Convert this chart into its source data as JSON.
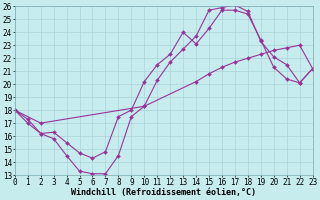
{
  "xlabel": "Windchill (Refroidissement éolien,°C)",
  "bg_color": "#c6ecee",
  "grid_color": "#a8d4d8",
  "line_color": "#993399",
  "line1_x": [
    0,
    1,
    2,
    3,
    4,
    5,
    6,
    7,
    8,
    9,
    10,
    11,
    12,
    13,
    14,
    15,
    16,
    17,
    18,
    19,
    20,
    21,
    22,
    23
  ],
  "line1_y": [
    18.0,
    17.0,
    16.2,
    15.8,
    14.5,
    13.3,
    13.1,
    13.1,
    14.5,
    17.5,
    18.3,
    20.3,
    21.7,
    22.7,
    23.7,
    25.7,
    25.9,
    26.1,
    25.6,
    23.3,
    22.1,
    21.5,
    20.1,
    21.2
  ],
  "line2_x": [
    0,
    1,
    2,
    3,
    4,
    5,
    6,
    7,
    8,
    9,
    10,
    11,
    12,
    13,
    14,
    15,
    16,
    17,
    18,
    19,
    20,
    21,
    22,
    23
  ],
  "line2_y": [
    18.0,
    17.3,
    16.2,
    16.3,
    15.5,
    14.7,
    14.3,
    14.8,
    17.5,
    18.0,
    20.2,
    21.5,
    22.3,
    24.0,
    23.1,
    24.3,
    25.7,
    25.7,
    25.4,
    23.4,
    21.3,
    20.4,
    20.1,
    21.2
  ],
  "line3_x": [
    0,
    2,
    10,
    14,
    15,
    16,
    17,
    18,
    19,
    20,
    21,
    22,
    23
  ],
  "line3_y": [
    18.0,
    17.0,
    18.3,
    20.2,
    20.8,
    21.3,
    21.7,
    22.0,
    22.3,
    22.6,
    22.8,
    23.0,
    21.2
  ],
  "xlim": [
    0,
    23
  ],
  "ylim": [
    13,
    26
  ],
  "xticks": [
    0,
    1,
    2,
    3,
    4,
    5,
    6,
    7,
    8,
    9,
    10,
    11,
    12,
    13,
    14,
    15,
    16,
    17,
    18,
    19,
    20,
    21,
    22,
    23
  ],
  "yticks": [
    13,
    14,
    15,
    16,
    17,
    18,
    19,
    20,
    21,
    22,
    23,
    24,
    25,
    26
  ],
  "tick_fontsize": 5.5,
  "xlabel_fontsize": 6.0,
  "markersize": 2.0
}
